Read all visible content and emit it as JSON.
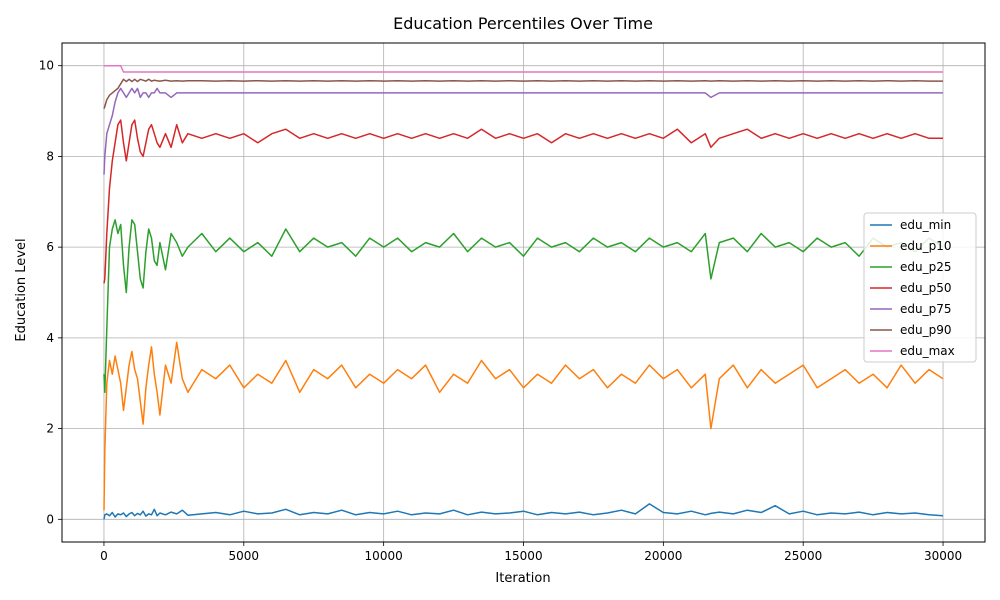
{
  "chart_data": {
    "type": "line",
    "title": "Education Percentiles Over Time",
    "xlabel": "Iteration",
    "ylabel": "Education Level",
    "xlim": [
      -1500,
      31500
    ],
    "ylim": [
      -0.5,
      10.5
    ],
    "xticks": [
      0,
      5000,
      10000,
      15000,
      20000,
      25000,
      30000
    ],
    "yticks": [
      0,
      2,
      4,
      6,
      8,
      10
    ],
    "grid": true,
    "legend_position": "center-right",
    "x": [
      0,
      30,
      100,
      200,
      300,
      400,
      500,
      600,
      700,
      800,
      900,
      1000,
      1100,
      1200,
      1300,
      1400,
      1500,
      1600,
      1700,
      1800,
      1900,
      2000,
      2200,
      2400,
      2600,
      2800,
      3000,
      3500,
      4000,
      4500,
      5000,
      5500,
      6000,
      6500,
      7000,
      7500,
      8000,
      8500,
      9000,
      9500,
      10000,
      10500,
      11000,
      11500,
      12000,
      12500,
      13000,
      13500,
      14000,
      14500,
      15000,
      15500,
      16000,
      16500,
      17000,
      17500,
      18000,
      18500,
      19000,
      19500,
      20000,
      20500,
      21000,
      21500,
      21700,
      22000,
      22500,
      23000,
      23500,
      24000,
      24500,
      25000,
      25500,
      26000,
      26500,
      27000,
      27500,
      28000,
      28500,
      29000,
      29500,
      30000
    ],
    "series": [
      {
        "name": "edu_min",
        "color": "#1f77b4",
        "values": [
          0.0,
          0.1,
          0.12,
          0.08,
          0.15,
          0.05,
          0.12,
          0.1,
          0.14,
          0.06,
          0.12,
          0.15,
          0.08,
          0.13,
          0.1,
          0.18,
          0.07,
          0.12,
          0.1,
          0.22,
          0.08,
          0.14,
          0.1,
          0.16,
          0.12,
          0.2,
          0.09,
          0.12,
          0.15,
          0.1,
          0.18,
          0.12,
          0.14,
          0.22,
          0.1,
          0.15,
          0.12,
          0.2,
          0.1,
          0.15,
          0.12,
          0.18,
          0.1,
          0.14,
          0.12,
          0.2,
          0.1,
          0.16,
          0.12,
          0.14,
          0.18,
          0.1,
          0.15,
          0.12,
          0.16,
          0.1,
          0.14,
          0.2,
          0.12,
          0.34,
          0.15,
          0.12,
          0.18,
          0.1,
          0.13,
          0.16,
          0.12,
          0.2,
          0.15,
          0.3,
          0.12,
          0.18,
          0.1,
          0.14,
          0.12,
          0.16,
          0.1,
          0.15,
          0.12,
          0.14,
          0.1,
          0.08
        ]
      },
      {
        "name": "edu_p10",
        "color": "#ff7f0e",
        "values": [
          0.2,
          1.5,
          3.0,
          3.5,
          3.2,
          3.6,
          3.3,
          3.0,
          2.4,
          2.9,
          3.4,
          3.7,
          3.3,
          3.1,
          2.6,
          2.1,
          2.9,
          3.4,
          3.8,
          3.2,
          2.8,
          2.3,
          3.4,
          3.0,
          3.9,
          3.1,
          2.8,
          3.3,
          3.1,
          3.4,
          2.9,
          3.2,
          3.0,
          3.5,
          2.8,
          3.3,
          3.1,
          3.4,
          2.9,
          3.2,
          3.0,
          3.3,
          3.1,
          3.4,
          2.8,
          3.2,
          3.0,
          3.5,
          3.1,
          3.3,
          2.9,
          3.2,
          3.0,
          3.4,
          3.1,
          3.3,
          2.9,
          3.2,
          3.0,
          3.4,
          3.1,
          3.3,
          2.9,
          3.2,
          2.0,
          3.1,
          3.4,
          2.9,
          3.3,
          3.0,
          3.2,
          3.4,
          2.9,
          3.1,
          3.3,
          3.0,
          3.2,
          2.9,
          3.4,
          3.0,
          3.3,
          3.1
        ]
      },
      {
        "name": "edu_p25",
        "color": "#2ca02c",
        "values": [
          3.2,
          2.8,
          4.2,
          6.0,
          6.4,
          6.6,
          6.3,
          6.5,
          5.6,
          5.0,
          6.0,
          6.6,
          6.5,
          5.9,
          5.3,
          5.1,
          5.9,
          6.4,
          6.2,
          5.7,
          5.6,
          6.1,
          5.5,
          6.3,
          6.1,
          5.8,
          6.0,
          6.3,
          5.9,
          6.2,
          5.9,
          6.1,
          5.8,
          6.4,
          5.9,
          6.2,
          6.0,
          6.1,
          5.8,
          6.2,
          6.0,
          6.2,
          5.9,
          6.1,
          6.0,
          6.3,
          5.9,
          6.2,
          6.0,
          6.1,
          5.8,
          6.2,
          6.0,
          6.1,
          5.9,
          6.2,
          6.0,
          6.1,
          5.9,
          6.2,
          6.0,
          6.1,
          5.9,
          6.3,
          5.3,
          6.1,
          6.2,
          5.9,
          6.3,
          6.0,
          6.1,
          5.9,
          6.2,
          6.0,
          6.1,
          5.8,
          6.2,
          6.0,
          6.1,
          5.9,
          6.2,
          6.0
        ]
      },
      {
        "name": "edu_p50",
        "color": "#d62728",
        "values": [
          5.2,
          5.3,
          6.3,
          7.3,
          7.9,
          8.3,
          8.7,
          8.8,
          8.3,
          7.9,
          8.3,
          8.7,
          8.8,
          8.4,
          8.1,
          8.0,
          8.3,
          8.6,
          8.7,
          8.5,
          8.3,
          8.2,
          8.5,
          8.2,
          8.7,
          8.3,
          8.5,
          8.4,
          8.5,
          8.4,
          8.5,
          8.3,
          8.5,
          8.6,
          8.4,
          8.5,
          8.4,
          8.5,
          8.4,
          8.5,
          8.4,
          8.5,
          8.4,
          8.5,
          8.4,
          8.5,
          8.4,
          8.6,
          8.4,
          8.5,
          8.4,
          8.5,
          8.3,
          8.5,
          8.4,
          8.5,
          8.4,
          8.5,
          8.4,
          8.5,
          8.4,
          8.6,
          8.3,
          8.5,
          8.2,
          8.4,
          8.5,
          8.6,
          8.4,
          8.5,
          8.4,
          8.5,
          8.4,
          8.5,
          8.4,
          8.5,
          8.4,
          8.5,
          8.4,
          8.5,
          8.4,
          8.4
        ]
      },
      {
        "name": "edu_p75",
        "color": "#9467bd",
        "values": [
          7.6,
          8.0,
          8.5,
          8.7,
          8.9,
          9.2,
          9.4,
          9.5,
          9.4,
          9.3,
          9.4,
          9.5,
          9.4,
          9.5,
          9.3,
          9.4,
          9.4,
          9.3,
          9.4,
          9.4,
          9.5,
          9.4,
          9.4,
          9.3,
          9.4,
          9.4,
          9.4,
          9.4,
          9.4,
          9.4,
          9.4,
          9.4,
          9.4,
          9.4,
          9.4,
          9.4,
          9.4,
          9.4,
          9.4,
          9.4,
          9.4,
          9.4,
          9.4,
          9.4,
          9.4,
          9.4,
          9.4,
          9.4,
          9.4,
          9.4,
          9.4,
          9.4,
          9.4,
          9.4,
          9.4,
          9.4,
          9.4,
          9.4,
          9.4,
          9.4,
          9.4,
          9.4,
          9.4,
          9.4,
          9.3,
          9.4,
          9.4,
          9.4,
          9.4,
          9.4,
          9.4,
          9.4,
          9.4,
          9.4,
          9.4,
          9.4,
          9.4,
          9.4,
          9.4,
          9.4,
          9.4,
          9.4
        ]
      },
      {
        "name": "edu_p90",
        "color": "#8c564b",
        "values": [
          9.05,
          9.1,
          9.25,
          9.35,
          9.4,
          9.45,
          9.5,
          9.6,
          9.7,
          9.65,
          9.7,
          9.65,
          9.7,
          9.65,
          9.7,
          9.68,
          9.66,
          9.7,
          9.66,
          9.68,
          9.67,
          9.66,
          9.68,
          9.66,
          9.67,
          9.66,
          9.67,
          9.67,
          9.66,
          9.67,
          9.66,
          9.67,
          9.66,
          9.67,
          9.66,
          9.67,
          9.66,
          9.67,
          9.66,
          9.67,
          9.66,
          9.67,
          9.66,
          9.67,
          9.66,
          9.67,
          9.66,
          9.67,
          9.66,
          9.67,
          9.66,
          9.67,
          9.66,
          9.67,
          9.66,
          9.67,
          9.66,
          9.67,
          9.66,
          9.67,
          9.66,
          9.67,
          9.66,
          9.67,
          9.66,
          9.67,
          9.66,
          9.67,
          9.66,
          9.67,
          9.66,
          9.67,
          9.66,
          9.67,
          9.66,
          9.67,
          9.66,
          9.67,
          9.66,
          9.67,
          9.66,
          9.66
        ]
      },
      {
        "name": "edu_max",
        "color": "#e377c2",
        "values": [
          10.0,
          10.0,
          10.0,
          10.0,
          10.0,
          10.0,
          10.0,
          10.0,
          9.86,
          9.86,
          9.86,
          9.86,
          9.86,
          9.86,
          9.86,
          9.86,
          9.86,
          9.86,
          9.86,
          9.86,
          9.86,
          9.86,
          9.86,
          9.86,
          9.86,
          9.86,
          9.86,
          9.86,
          9.86,
          9.86,
          9.86,
          9.86,
          9.86,
          9.86,
          9.86,
          9.86,
          9.86,
          9.86,
          9.86,
          9.86,
          9.86,
          9.86,
          9.86,
          9.86,
          9.86,
          9.86,
          9.86,
          9.86,
          9.86,
          9.86,
          9.86,
          9.86,
          9.86,
          9.86,
          9.86,
          9.86,
          9.86,
          9.86,
          9.86,
          9.86,
          9.86,
          9.86,
          9.86,
          9.86,
          9.86,
          9.86,
          9.86,
          9.86,
          9.86,
          9.86,
          9.86,
          9.86,
          9.86,
          9.86,
          9.86,
          9.86,
          9.86,
          9.86,
          9.86,
          9.86,
          9.86,
          9.86
        ]
      }
    ]
  }
}
